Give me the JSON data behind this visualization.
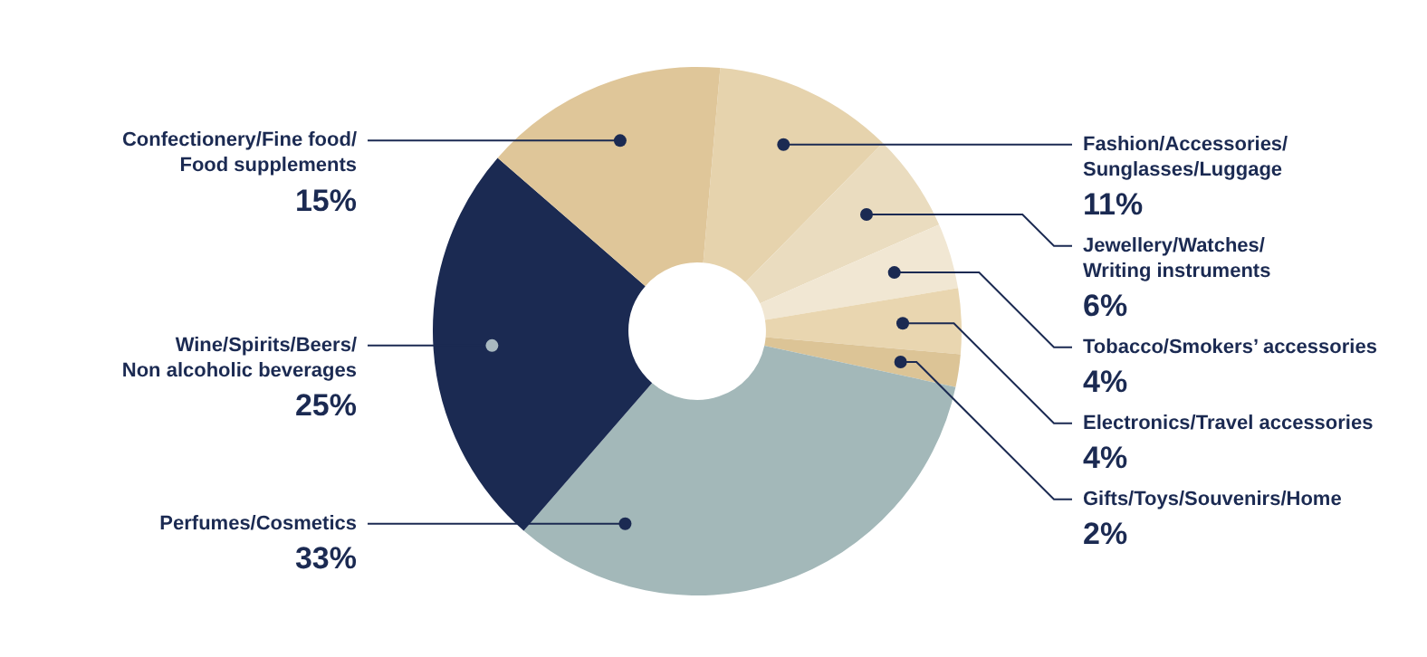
{
  "chart_data": {
    "type": "donut",
    "categories": [
      "Fashion/Accessories/Sunglasses/Luggage",
      "Jewellery/Watches/Writing instruments",
      "Tobacco/Smokers’ accessories",
      "Electronics/Travel accessories",
      "Gifts/Toys/Souvenirs/Home",
      "Perfumes/Cosmetics",
      "Wine/Spirits/Beers/Non alcoholic beverages",
      "Confectionery/Fine food/Food supplements"
    ],
    "values": [
      11,
      6,
      4,
      4,
      2,
      33,
      25,
      15
    ],
    "colors": [
      "#e6d3ad",
      "#eadcbf",
      "#f1e7d3",
      "#e9d6b0",
      "#dcc496",
      "#a3b8b9",
      "#1b2a52",
      "#dfc699"
    ],
    "value_labels": [
      "11%",
      "6%",
      "4%",
      "4%",
      "2%",
      "33%",
      "25%",
      "15%"
    ]
  }
}
